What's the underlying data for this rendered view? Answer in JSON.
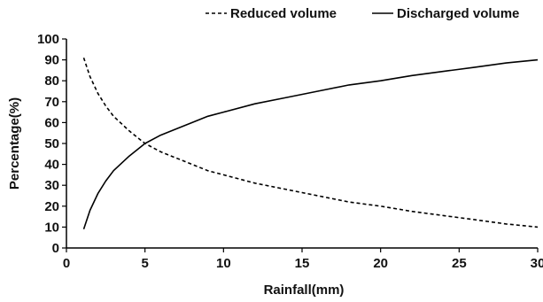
{
  "chart_data": {
    "type": "line",
    "title": "",
    "xlabel": "Rainfall(mm)",
    "ylabel": "Percentage(%)",
    "xlim": [
      0,
      30
    ],
    "ylim": [
      0,
      100
    ],
    "xticks": [
      0,
      5,
      10,
      15,
      20,
      25,
      30
    ],
    "yticks": [
      0,
      10,
      20,
      30,
      40,
      50,
      60,
      70,
      80,
      90,
      100
    ],
    "grid": false,
    "legend_position": "top-right",
    "x": [
      1.1,
      1.5,
      2,
      2.5,
      3,
      4,
      5,
      6,
      7,
      8,
      9,
      10,
      12,
      14,
      16,
      18,
      20,
      22,
      24,
      26,
      28,
      30
    ],
    "series": [
      {
        "name": "Reduced volume",
        "style": "dashed",
        "color": "#000000",
        "values": [
          91,
          82,
          74,
          68,
          63,
          56,
          50,
          46,
          43,
          40,
          37,
          35,
          31,
          28,
          25,
          22,
          20,
          17.5,
          15.5,
          13.5,
          11.5,
          10
        ]
      },
      {
        "name": "Discharged volume",
        "style": "solid",
        "color": "#000000",
        "values": [
          9,
          18,
          26,
          32,
          37,
          44,
          50,
          54,
          57,
          60,
          63,
          65,
          69,
          72,
          75,
          78,
          80,
          82.5,
          84.5,
          86.5,
          88.5,
          90
        ]
      }
    ]
  }
}
